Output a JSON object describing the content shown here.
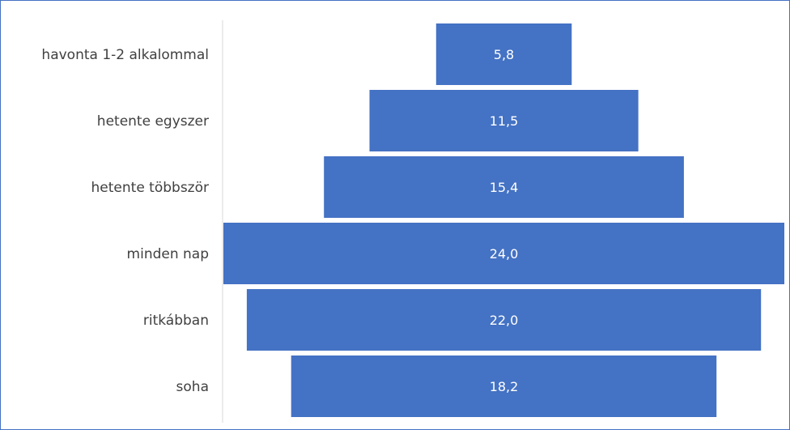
{
  "chart_data": {
    "type": "bar",
    "orientation": "horizontal",
    "style": "centered funnel bars",
    "categories": [
      "havonta 1-2 alkalommal",
      "hetente egyszer",
      "hetente többször",
      "minden nap",
      "ritkábban",
      "soha"
    ],
    "values": [
      5.8,
      11.5,
      15.4,
      24.0,
      22.0,
      18.2
    ],
    "value_labels": [
      "5,8",
      "11,5",
      "15,4",
      "24,0",
      "22,0",
      "18,2"
    ],
    "title": "",
    "xlabel": "",
    "ylabel": "",
    "grid": false,
    "legend": "none",
    "colors": {
      "bar": "#4472c4",
      "bar_label": "#ffffff",
      "category_label": "#404040",
      "axis_line": "#d9d9d9",
      "frame": "#4472c4"
    }
  }
}
